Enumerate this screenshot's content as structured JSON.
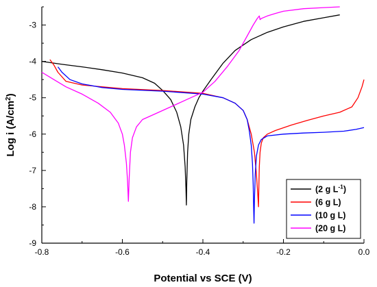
{
  "chart_data": {
    "type": "line",
    "xlabel": "Potential vs SCE (V)",
    "ylabel_main": "Log i (A/cm",
    "ylabel_sup": "2",
    "ylabel_end": ")",
    "xlim": [
      -0.8,
      0.0
    ],
    "ylim": [
      -9,
      -2.5
    ],
    "xticks": [
      -0.8,
      -0.6,
      -0.4,
      -0.2,
      0.0
    ],
    "xtick_labels": [
      "-0.8",
      "-0.6",
      "-0.4",
      "-0.2",
      "0.0"
    ],
    "yticks": [
      -9,
      -8,
      -7,
      -6,
      -5,
      -4,
      -3
    ],
    "ytick_labels": [
      "-9",
      "-8",
      "-7",
      "-6",
      "-5",
      "-4",
      "-3"
    ],
    "grid": false,
    "legend_position": "bottom-right",
    "series": [
      {
        "name": "(2 g L",
        "name_sup": "-1",
        "name_end": ")",
        "color": "#000000",
        "points": [
          [
            -0.8,
            -4.0
          ],
          [
            -0.75,
            -4.08
          ],
          [
            -0.7,
            -4.15
          ],
          [
            -0.65,
            -4.23
          ],
          [
            -0.6,
            -4.32
          ],
          [
            -0.55,
            -4.45
          ],
          [
            -0.52,
            -4.6
          ],
          [
            -0.5,
            -4.8
          ],
          [
            -0.48,
            -5.05
          ],
          [
            -0.465,
            -5.4
          ],
          [
            -0.455,
            -5.8
          ],
          [
            -0.448,
            -6.3
          ],
          [
            -0.444,
            -6.9
          ],
          [
            -0.442,
            -7.5
          ],
          [
            -0.441,
            -7.95
          ],
          [
            -0.44,
            -7.3
          ],
          [
            -0.438,
            -6.5
          ],
          [
            -0.435,
            -6.0
          ],
          [
            -0.43,
            -5.6
          ],
          [
            -0.42,
            -5.25
          ],
          [
            -0.41,
            -5.0
          ],
          [
            -0.4,
            -4.82
          ],
          [
            -0.38,
            -4.5
          ],
          [
            -0.35,
            -4.05
          ],
          [
            -0.32,
            -3.7
          ],
          [
            -0.28,
            -3.4
          ],
          [
            -0.24,
            -3.2
          ],
          [
            -0.2,
            -3.05
          ],
          [
            -0.15,
            -2.9
          ],
          [
            -0.1,
            -2.8
          ],
          [
            -0.06,
            -2.72
          ]
        ]
      },
      {
        "name": "(6 g L)",
        "color": "#ff0000",
        "points": [
          [
            -0.78,
            -3.95
          ],
          [
            -0.77,
            -4.1
          ],
          [
            -0.76,
            -4.3
          ],
          [
            -0.74,
            -4.55
          ],
          [
            -0.7,
            -4.65
          ],
          [
            -0.6,
            -4.75
          ],
          [
            -0.5,
            -4.8
          ],
          [
            -0.4,
            -4.88
          ],
          [
            -0.35,
            -5.0
          ],
          [
            -0.32,
            -5.15
          ],
          [
            -0.3,
            -5.35
          ],
          [
            -0.29,
            -5.6
          ],
          [
            -0.28,
            -6.0
          ],
          [
            -0.272,
            -6.5
          ],
          [
            -0.267,
            -7.1
          ],
          [
            -0.264,
            -7.6
          ],
          [
            -0.262,
            -8.0
          ],
          [
            -0.261,
            -7.4
          ],
          [
            -0.26,
            -6.9
          ],
          [
            -0.258,
            -6.5
          ],
          [
            -0.255,
            -6.25
          ],
          [
            -0.25,
            -6.1
          ],
          [
            -0.24,
            -6.0
          ],
          [
            -0.22,
            -5.9
          ],
          [
            -0.18,
            -5.75
          ],
          [
            -0.14,
            -5.62
          ],
          [
            -0.1,
            -5.5
          ],
          [
            -0.06,
            -5.4
          ],
          [
            -0.03,
            -5.25
          ],
          [
            -0.015,
            -5.0
          ],
          [
            -0.005,
            -4.7
          ],
          [
            0.0,
            -4.5
          ]
        ]
      },
      {
        "name": "(10 g L)",
        "color": "#0000ff",
        "points": [
          [
            -0.76,
            -4.15
          ],
          [
            -0.75,
            -4.3
          ],
          [
            -0.73,
            -4.5
          ],
          [
            -0.7,
            -4.62
          ],
          [
            -0.65,
            -4.72
          ],
          [
            -0.6,
            -4.77
          ],
          [
            -0.5,
            -4.82
          ],
          [
            -0.4,
            -4.9
          ],
          [
            -0.35,
            -5.0
          ],
          [
            -0.32,
            -5.15
          ],
          [
            -0.3,
            -5.35
          ],
          [
            -0.29,
            -5.6
          ],
          [
            -0.285,
            -5.9
          ],
          [
            -0.28,
            -6.3
          ],
          [
            -0.277,
            -6.8
          ],
          [
            -0.275,
            -7.4
          ],
          [
            -0.274,
            -8.0
          ],
          [
            -0.273,
            -8.45
          ],
          [
            -0.272,
            -7.8
          ],
          [
            -0.27,
            -7.1
          ],
          [
            -0.267,
            -6.6
          ],
          [
            -0.262,
            -6.3
          ],
          [
            -0.255,
            -6.15
          ],
          [
            -0.24,
            -6.05
          ],
          [
            -0.2,
            -6.0
          ],
          [
            -0.15,
            -5.97
          ],
          [
            -0.1,
            -5.95
          ],
          [
            -0.05,
            -5.92
          ],
          [
            -0.02,
            -5.87
          ],
          [
            0.0,
            -5.82
          ]
        ]
      },
      {
        "name": "(20 g L)",
        "color": "#ff00ff",
        "points": [
          [
            -0.8,
            -4.3
          ],
          [
            -0.77,
            -4.5
          ],
          [
            -0.74,
            -4.7
          ],
          [
            -0.7,
            -4.9
          ],
          [
            -0.66,
            -5.15
          ],
          [
            -0.63,
            -5.4
          ],
          [
            -0.61,
            -5.7
          ],
          [
            -0.6,
            -6.0
          ],
          [
            -0.595,
            -6.3
          ],
          [
            -0.59,
            -6.8
          ],
          [
            -0.587,
            -7.3
          ],
          [
            -0.585,
            -7.85
          ],
          [
            -0.583,
            -7.2
          ],
          [
            -0.58,
            -6.5
          ],
          [
            -0.575,
            -6.1
          ],
          [
            -0.565,
            -5.8
          ],
          [
            -0.55,
            -5.6
          ],
          [
            -0.52,
            -5.45
          ],
          [
            -0.48,
            -5.25
          ],
          [
            -0.44,
            -5.05
          ],
          [
            -0.4,
            -4.85
          ],
          [
            -0.37,
            -4.55
          ],
          [
            -0.34,
            -4.15
          ],
          [
            -0.31,
            -3.7
          ],
          [
            -0.29,
            -3.3
          ],
          [
            -0.275,
            -3.0
          ],
          [
            -0.265,
            -2.82
          ],
          [
            -0.26,
            -2.75
          ],
          [
            -0.258,
            -2.85
          ],
          [
            -0.255,
            -2.82
          ],
          [
            -0.24,
            -2.75
          ],
          [
            -0.22,
            -2.68
          ],
          [
            -0.2,
            -2.62
          ],
          [
            -0.15,
            -2.55
          ],
          [
            -0.1,
            -2.52
          ],
          [
            -0.06,
            -2.5
          ]
        ]
      }
    ]
  }
}
